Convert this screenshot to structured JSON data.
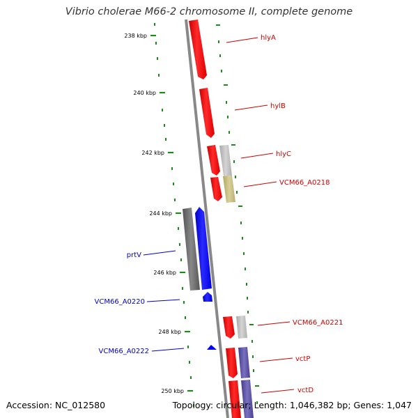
{
  "title": "Vibrio cholerae M66-2 chromosome II, complete genome",
  "footer": {
    "accession": "Accession: NC_012580",
    "summary": "Topology: circular; Length: 1,046,382 bp; Genes: 1,047"
  },
  "colors": {
    "backbone": "#888888",
    "tick": "#1a8a1a",
    "forward_gene": "#ff0000",
    "reverse_gene": "#0000ff",
    "label_forward": "#cc0000",
    "label_reverse": "#0000cc",
    "gray_feature": "#bbbbbb",
    "dark_gray_feature": "#666666",
    "olive_feature": "#c8c080",
    "purple_feature": "#5a4fa0"
  },
  "ticks": [
    {
      "label": "238 kbp"
    },
    {
      "label": "240 kbp"
    },
    {
      "label": "242 kbp"
    },
    {
      "label": "244 kbp"
    },
    {
      "label": "246 kbp"
    },
    {
      "label": "248 kbp"
    },
    {
      "label": "250 kbp"
    }
  ],
  "genes": [
    {
      "label": "hlyA",
      "strand": "forward"
    },
    {
      "label": "hylB",
      "strand": "forward"
    },
    {
      "label": "hlyC",
      "strand": "forward"
    },
    {
      "label": "VCM66_A0218",
      "strand": "forward"
    },
    {
      "label": "VCM66_A0221",
      "strand": "forward"
    },
    {
      "label": "vctP",
      "strand": "forward"
    },
    {
      "label": "vctD",
      "strand": "forward"
    },
    {
      "label": "prtV",
      "strand": "reverse"
    },
    {
      "label": "VCM66_A0220",
      "strand": "reverse"
    },
    {
      "label": "VCM66_A0222",
      "strand": "reverse"
    }
  ]
}
